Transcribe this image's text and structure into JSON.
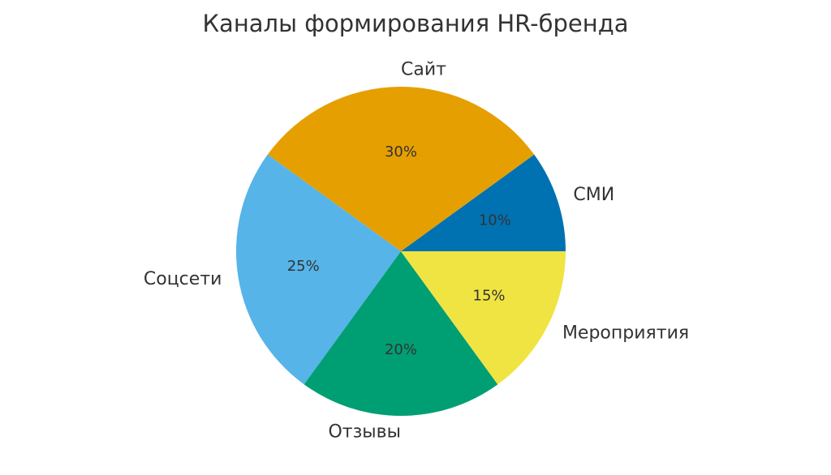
{
  "chart_data": {
    "type": "pie",
    "title": "Каналы формирования HR-бренда",
    "start_angle_deg": 0,
    "direction": "counterclockwise",
    "slices": [
      {
        "label": "СМИ",
        "value": 10,
        "pct_label": "10%",
        "color": "#0072B2"
      },
      {
        "label": "Сайт",
        "value": 30,
        "pct_label": "30%",
        "color": "#E69F00"
      },
      {
        "label": "Соцсети",
        "value": 25,
        "pct_label": "25%",
        "color": "#56B4E9"
      },
      {
        "label": "Отзывы",
        "value": 20,
        "pct_label": "20%",
        "color": "#009E73"
      },
      {
        "label": "Мероприятия",
        "value": 15,
        "pct_label": "15%",
        "color": "#F0E442"
      }
    ]
  }
}
